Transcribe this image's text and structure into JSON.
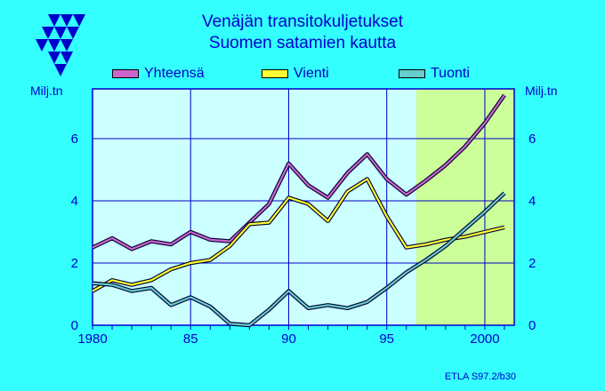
{
  "colors": {
    "background": "#33ffff",
    "plot_background": "#ccffff",
    "forecast_background": "#ccff99",
    "axis": "#0000cc",
    "text": "#0000cc",
    "total": "#cc66cc",
    "export": "#ffff33",
    "import": "#66cccc"
  },
  "logo_icon": "triangle-logo-icon",
  "chart_data": {
    "type": "line",
    "title": "Venäjän transitokuljetukset",
    "subtitle": "Suomen satamien kautta",
    "ylabel_left": "Milj.tn",
    "ylabel_right": "Milj.tn",
    "xlabel": "",
    "xlim": [
      1980,
      2001.5
    ],
    "ylim": [
      0,
      7.6
    ],
    "xticks": [
      1980,
      1985,
      1990,
      1995,
      2000
    ],
    "xtick_labels": [
      "1980",
      "85",
      "90",
      "95",
      "2000"
    ],
    "yticks": [
      0,
      2,
      4,
      6
    ],
    "ytick_labels": [
      "0",
      "2",
      "4",
      "6"
    ],
    "forecast_start": 1996.5,
    "grid": true,
    "legend_position": "top",
    "series": [
      {
        "name": "Yhteensä",
        "x": [
          1980,
          1981,
          1982,
          1983,
          1984,
          1985,
          1986,
          1987,
          1988,
          1989,
          1990,
          1991,
          1992,
          1993,
          1994,
          1995,
          1996,
          1997,
          1998,
          1999,
          2000,
          2001
        ],
        "values": [
          2.5,
          2.8,
          2.45,
          2.7,
          2.6,
          3.0,
          2.75,
          2.7,
          3.3,
          3.9,
          5.2,
          4.5,
          4.1,
          4.9,
          5.5,
          4.7,
          4.2,
          4.65,
          5.15,
          5.75,
          6.5,
          7.4
        ]
      },
      {
        "name": "Vienti",
        "x": [
          1980,
          1981,
          1982,
          1983,
          1984,
          1985,
          1986,
          1987,
          1988,
          1989,
          1990,
          1991,
          1992,
          1993,
          1994,
          1995,
          1996,
          1997,
          1998,
          1999,
          2000,
          2001
        ],
        "values": [
          1.1,
          1.45,
          1.3,
          1.45,
          1.8,
          2.0,
          2.1,
          2.55,
          3.25,
          3.3,
          4.1,
          3.9,
          3.35,
          4.3,
          4.7,
          3.5,
          2.5,
          2.6,
          2.75,
          2.85,
          3.0,
          3.15
        ]
      },
      {
        "name": "Tuonti",
        "x": [
          1980,
          1981,
          1982,
          1983,
          1984,
          1985,
          1986,
          1987,
          1988,
          1989,
          1990,
          1991,
          1992,
          1993,
          1994,
          1995,
          1996,
          1997,
          1998,
          1999,
          2000,
          2001
        ],
        "values": [
          1.35,
          1.3,
          1.1,
          1.2,
          0.65,
          0.9,
          0.6,
          0.05,
          0.0,
          0.5,
          1.1,
          0.55,
          0.65,
          0.55,
          0.75,
          1.2,
          1.7,
          2.1,
          2.55,
          3.1,
          3.65,
          4.25
        ]
      }
    ]
  },
  "credit": "ETLA S97.2/b30"
}
